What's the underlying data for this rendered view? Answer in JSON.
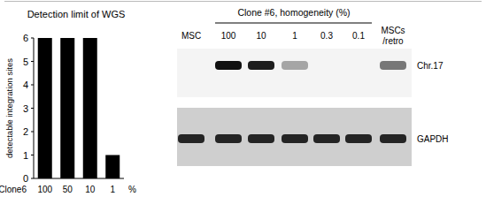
{
  "chart_data": {
    "type": "bar",
    "title": "Detection limit of WGS",
    "y_label": "detectable integration sites",
    "annotations": [
      "Clone6",
      "%"
    ],
    "categories": [
      "100",
      "50",
      "10",
      "1"
    ],
    "values": [
      6,
      6,
      6,
      1
    ],
    "color": "#000000",
    "ylim": [
      0,
      6
    ],
    "yticks": [
      0,
      1,
      2,
      3,
      4,
      5,
      6
    ],
    "grid": false
  },
  "gel": {
    "header": "Clone #6, homogeneity (%)",
    "lanes": [
      "MSC",
      "100",
      "10",
      "1",
      "0.3",
      "0.1",
      "MSCs/retro"
    ],
    "rows": [
      {
        "label": "Chr.17",
        "intensity": [
          0,
          1,
          0.95,
          0.35,
          0,
          0,
          0.55
        ]
      },
      {
        "label": "GAPDH",
        "intensity": [
          0.9,
          0.9,
          0.9,
          0.9,
          0.9,
          0.9,
          0.9
        ]
      }
    ]
  }
}
